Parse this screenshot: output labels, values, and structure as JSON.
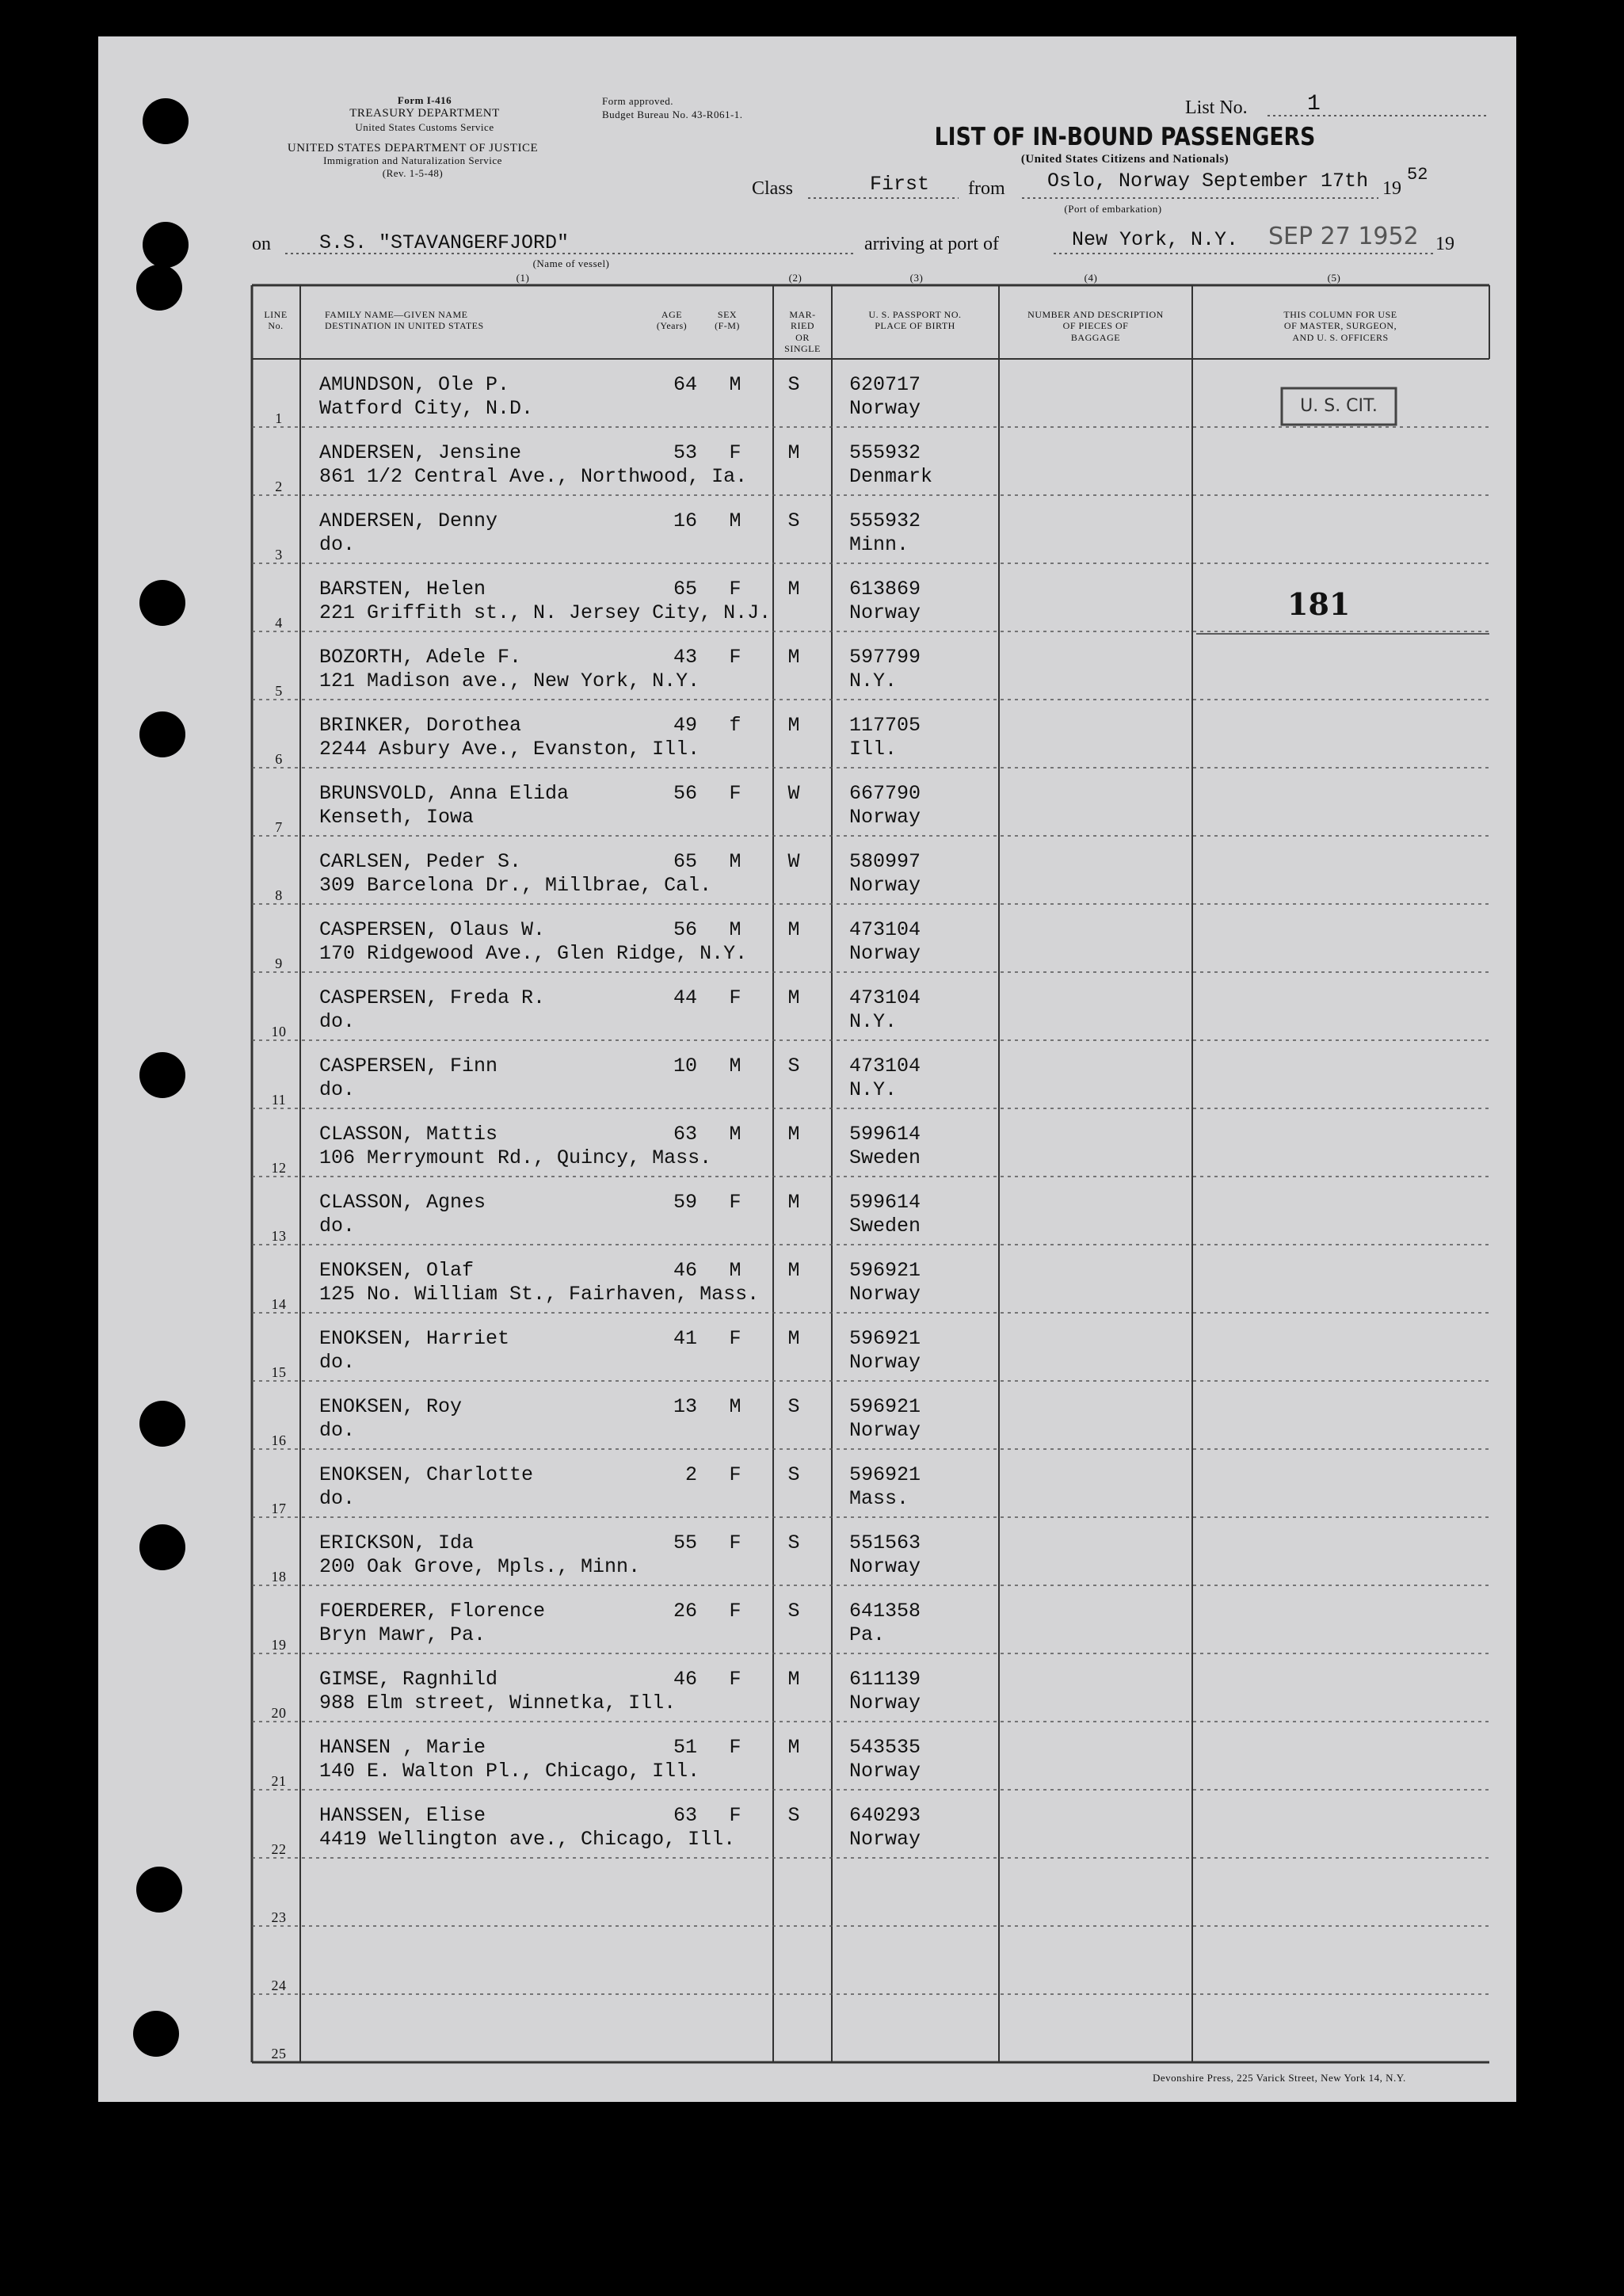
{
  "header": {
    "form_no": "Form I-416",
    "dept": "TREASURY DEPARTMENT",
    "customs": "United States Customs Service",
    "justice": "UNITED STATES DEPARTMENT OF JUSTICE",
    "ins": "Immigration and Naturalization Service",
    "rev": "(Rev. 1-5-48)",
    "approved": "Form approved.",
    "budget": "Budget Bureau No. 43-R061-1.",
    "list_label": "List No.",
    "list_no": "1",
    "title": "LIST OF IN-BOUND PASSENGERS",
    "subtitle": "(United States Citizens and Nationals)",
    "class_label": "Class",
    "class": "First",
    "from_label": "from",
    "from": "Oslo, Norway September 17th",
    "year_prefix": "19",
    "year": "52",
    "port_note": "(Port of embarkation)",
    "on_label": "on",
    "vessel": "S.S. \"STAVANGERFJORD\"",
    "vessel_note": "(Name of vessel)",
    "arriving_label": "arriving at port of",
    "port": "New York, N.Y.",
    "stamp": "SEP 27 1952",
    "year_prefix2": "19"
  },
  "table": {
    "column_numbers": [
      "(1)",
      "(2)",
      "(3)",
      "(4)",
      "(5)"
    ],
    "columns": [
      "LINE\nNo.",
      "FAMILY NAME—GIVEN NAME\nDESTINATION IN UNITED STATES",
      "AGE\n(Years)",
      "SEX\n(F-M)",
      "MAR-\nRIED\nOR\nSINGLE",
      "U. S. PASSPORT NO.\nPLACE OF BIRTH",
      "NUMBER AND DESCRIPTION\nOF PIECES OF\nBAGGAGE",
      "THIS COLUMN FOR USE\nOF MASTER, SURGEON,\nAND U. S. OFFICERS"
    ],
    "rows": [
      {
        "line": 1,
        "name": "AMUNDSON, Ole P.",
        "destination": "Watford City, N.D.",
        "age": 64,
        "sex": "M",
        "marital": "S",
        "passport": "620717",
        "birthplace": "Norway"
      },
      {
        "line": 2,
        "name": "ANDERSEN, Jensine",
        "destination": "861 1/2 Central Ave., Northwood, Ia.",
        "age": 53,
        "sex": "F",
        "marital": "M",
        "passport": "555932",
        "birthplace": "Denmark"
      },
      {
        "line": 3,
        "name": "ANDERSEN, Denny",
        "destination": "do.",
        "age": 16,
        "sex": "M",
        "marital": "S",
        "passport": "555932",
        "birthplace": "Minn."
      },
      {
        "line": 4,
        "name": "BARSTEN, Helen",
        "destination": "221 Griffith st., N. Jersey City, N.J.",
        "age": 65,
        "sex": "F",
        "marital": "M",
        "passport": "613869",
        "birthplace": "Norway"
      },
      {
        "line": 5,
        "name": "BOZORTH, Adele F.",
        "destination": "121 Madison ave., New York, N.Y.",
        "age": 43,
        "sex": "F",
        "marital": "M",
        "passport": "597799",
        "birthplace": "N.Y."
      },
      {
        "line": 6,
        "name": "BRINKER, Dorothea",
        "destination": "2244 Asbury Ave., Evanston, Ill.",
        "age": 49,
        "sex": "f",
        "marital": "M",
        "passport": "117705",
        "birthplace": "Ill."
      },
      {
        "line": 7,
        "name": "BRUNSVOLD, Anna Elida",
        "destination": "Kenseth, Iowa",
        "age": 56,
        "sex": "F",
        "marital": "W",
        "passport": "667790",
        "birthplace": "Norway"
      },
      {
        "line": 8,
        "name": "CARLSEN, Peder S.",
        "destination": "309 Barcelona Dr., Millbrae, Cal.",
        "age": 65,
        "sex": "M",
        "marital": "W",
        "passport": "580997",
        "birthplace": "Norway"
      },
      {
        "line": 9,
        "name": "CASPERSEN, Olaus W.",
        "destination": "170 Ridgewood Ave., Glen Ridge, N.Y.",
        "age": 56,
        "sex": "M",
        "marital": "M",
        "passport": "473104",
        "birthplace": "Norway"
      },
      {
        "line": 10,
        "name": "CASPERSEN, Freda R.",
        "destination": "do.",
        "age": 44,
        "sex": "F",
        "marital": "M",
        "passport": "473104",
        "birthplace": "N.Y."
      },
      {
        "line": 11,
        "name": "CASPERSEN, Finn",
        "destination": "do.",
        "age": 10,
        "sex": "M",
        "marital": "S",
        "passport": "473104",
        "birthplace": "N.Y."
      },
      {
        "line": 12,
        "name": "CLASSON, Mattis",
        "destination": "106 Merrymount Rd., Quincy, Mass.",
        "age": 63,
        "sex": "M",
        "marital": "M",
        "passport": "599614",
        "birthplace": "Sweden"
      },
      {
        "line": 13,
        "name": "CLASSON, Agnes",
        "destination": "do.",
        "age": 59,
        "sex": "F",
        "marital": "M",
        "passport": "599614",
        "birthplace": "Sweden"
      },
      {
        "line": 14,
        "name": "ENOKSEN, Olaf",
        "destination": "125 No. William St., Fairhaven, Mass.",
        "age": 46,
        "sex": "M",
        "marital": "M",
        "passport": "596921",
        "birthplace": "Norway"
      },
      {
        "line": 15,
        "name": "ENOKSEN, Harriet",
        "destination": "do.",
        "age": 41,
        "sex": "F",
        "marital": "M",
        "passport": "596921",
        "birthplace": "Norway"
      },
      {
        "line": 16,
        "name": "ENOKSEN, Roy",
        "destination": "do.",
        "age": 13,
        "sex": "M",
        "marital": "S",
        "passport": "596921",
        "birthplace": "Norway"
      },
      {
        "line": 17,
        "name": "ENOKSEN, Charlotte",
        "destination": "do.",
        "age": 2,
        "sex": "F",
        "marital": "S",
        "passport": "596921",
        "birthplace": "Mass."
      },
      {
        "line": 18,
        "name": "ERICKSON, Ida",
        "destination": "200 Oak Grove, Mpls., Minn.",
        "age": 55,
        "sex": "F",
        "marital": "S",
        "passport": "551563",
        "birthplace": "Norway"
      },
      {
        "line": 19,
        "name": "FOERDERER, Florence",
        "destination": "Bryn Mawr, Pa.",
        "age": 26,
        "sex": "F",
        "marital": "S",
        "passport": "641358",
        "birthplace": "Pa."
      },
      {
        "line": 20,
        "name": "GIMSE, Ragnhild",
        "destination": "988 Elm street, Winnetka, Ill.",
        "age": 46,
        "sex": "F",
        "marital": "M",
        "passport": "611139",
        "birthplace": "Norway"
      },
      {
        "line": 21,
        "name": "HANSEN , Marie",
        "destination": "140 E. Walton Pl., Chicago, Ill.",
        "age": 51,
        "sex": "F",
        "marital": "M",
        "passport": "543535",
        "birthplace": "Norway"
      },
      {
        "line": 22,
        "name": "HANSSEN, Elise",
        "destination": "4419 Wellington ave., Chicago, Ill.",
        "age": 63,
        "sex": "F",
        "marital": "S",
        "passport": "640293",
        "birthplace": "Norway"
      }
    ],
    "empty_lines": [
      23,
      24,
      25
    ]
  },
  "annotations": {
    "citizen_stamp": "U. S. CIT.",
    "count": "181"
  },
  "footer": "Devonshire Press, 225 Varick Street, New York 14, N.Y."
}
